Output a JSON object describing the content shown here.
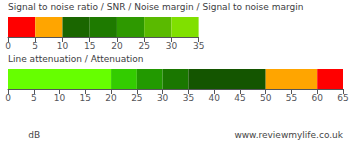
{
  "chart_data": [
    {
      "type": "bar",
      "orientation": "horizontal",
      "stacked": true,
      "title": "Signal to noise ratio / SNR / Noise margin / Signal to noise margin",
      "categories": [
        null
      ],
      "series": [
        {
          "color": "#ff0000",
          "values": [
            5
          ]
        },
        {
          "color": "#ffa500",
          "values": [
            5
          ]
        },
        {
          "color": "#1a6600",
          "values": [
            5
          ]
        },
        {
          "color": "#1e7a00",
          "values": [
            5
          ]
        },
        {
          "color": "#2e9900",
          "values": [
            5
          ]
        },
        {
          "color": "#5aba00",
          "values": [
            5
          ]
        },
        {
          "color": "#80e000",
          "values": [
            5
          ]
        }
      ],
      "xlim": [
        0,
        35
      ],
      "xticks": [
        0,
        5,
        10,
        15,
        20,
        25,
        30,
        35
      ],
      "grid": false,
      "tick_labels": "x"
    },
    {
      "type": "bar",
      "orientation": "horizontal",
      "stacked": true,
      "title": "Line attenuation / Attenuation",
      "categories": [
        null
      ],
      "series": [
        {
          "color": "#66ff00",
          "values": [
            20
          ]
        },
        {
          "color": "#33cc00",
          "values": [
            5
          ]
        },
        {
          "color": "#229900",
          "values": [
            5
          ]
        },
        {
          "color": "#1a7700",
          "values": [
            5
          ]
        },
        {
          "color": "#145500",
          "values": [
            15
          ]
        },
        {
          "color": "#ffa500",
          "values": [
            10
          ]
        },
        {
          "color": "#ff0000",
          "values": [
            5
          ]
        }
      ],
      "xlim": [
        0,
        65
      ],
      "xticks": [
        0,
        5,
        10,
        15,
        20,
        25,
        30,
        35,
        40,
        45,
        50,
        55,
        60,
        65
      ],
      "grid": false,
      "tick_labels": "x",
      "annotations": [
        "dB",
        "www.reviewmylife.co.uk"
      ]
    }
  ]
}
